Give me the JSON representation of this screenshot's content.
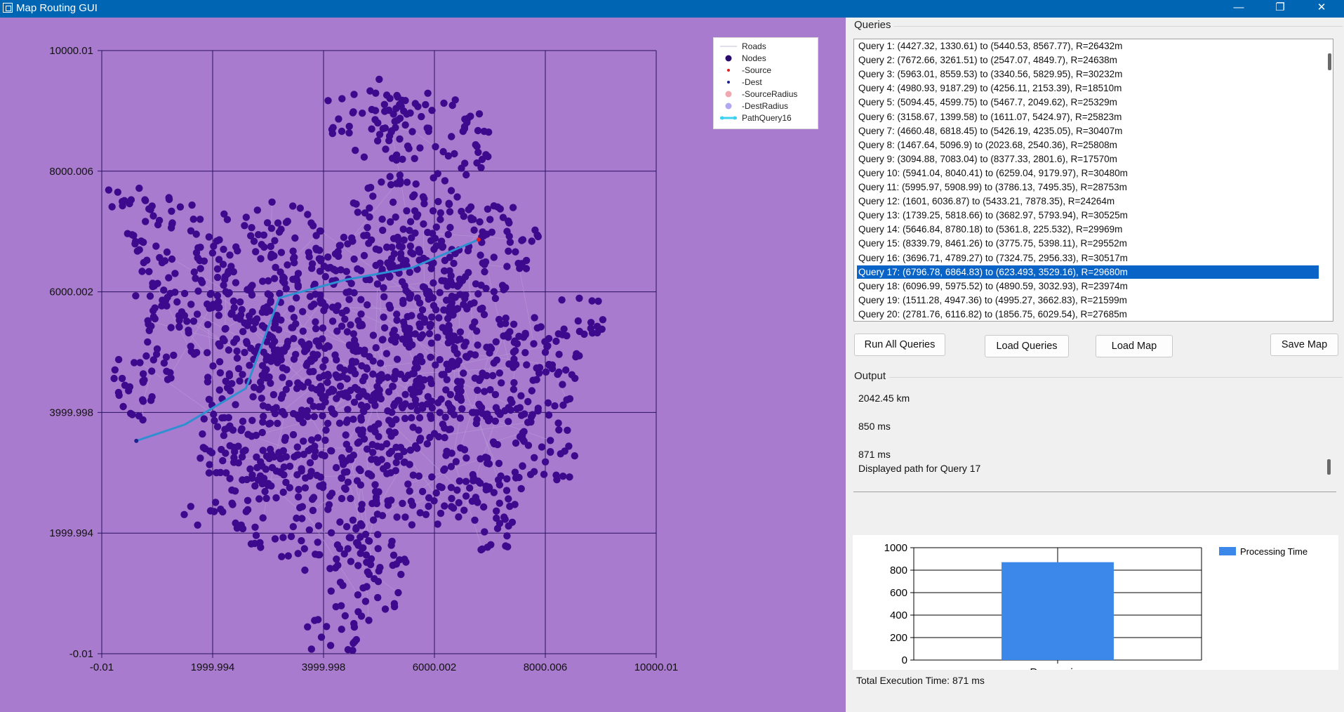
{
  "window": {
    "title": "Map Routing GUI",
    "icon": "app-window-icon",
    "controls": {
      "minimize": "—",
      "maximize": "❐",
      "close": "✕"
    }
  },
  "map": {
    "background_color": "#a97bce",
    "node_color": "#3d0a8e",
    "path_color": "#2f8fd0",
    "x_ticks": [
      "-0.01",
      "1999.994",
      "3999.998",
      "6000.002",
      "8000.006",
      "10000.01"
    ],
    "y_ticks": [
      "10000.01",
      "8000.006",
      "6000.002",
      "3999.998",
      "1999.994",
      "-0.01"
    ],
    "axis_range": [
      -0.01,
      10000.01
    ],
    "legend": [
      {
        "label": "Roads",
        "symbol": "line",
        "color": "#c0c0d8"
      },
      {
        "label": "Nodes",
        "symbol": "dot",
        "color": "#2b0a6e"
      },
      {
        "label": "-Source",
        "symbol": "dot-small",
        "color": "#e02020"
      },
      {
        "label": "-Dest",
        "symbol": "dot-small",
        "color": "#20208e"
      },
      {
        "label": "-SourceRadius",
        "symbol": "dot",
        "color": "#f0a8b0"
      },
      {
        "label": "-DestRadius",
        "symbol": "dot",
        "color": "#b0a8f0"
      },
      {
        "label": "PathQuery16",
        "symbol": "path",
        "color": "#3ed0f0"
      }
    ]
  },
  "queries": {
    "label": "Queries",
    "selected_index": 16,
    "items": [
      "Query 1: (4427.32, 1330.61) to (5440.53, 8567.77), R=26432m",
      "Query 2: (7672.66, 3261.51) to (2547.07, 4849.7), R=24638m",
      "Query 3: (5963.01, 8559.53) to (3340.56, 5829.95), R=30232m",
      "Query 4: (4980.93, 9187.29) to (4256.11, 2153.39), R=18510m",
      "Query 5: (5094.45, 4599.75) to (5467.7, 2049.62), R=25329m",
      "Query 6: (3158.67, 1399.58) to (1611.07, 5424.97), R=25823m",
      "Query 7: (4660.48, 6818.45) to (5426.19, 4235.05), R=30407m",
      "Query 8: (1467.64, 5096.9) to (2023.68, 2540.36), R=25808m",
      "Query 9: (3094.88, 7083.04) to (8377.33, 2801.6), R=17570m",
      "Query 10: (5941.04, 8040.41) to (6259.04, 9179.97), R=30480m",
      "Query 11: (5995.97, 5908.99) to (3786.13, 7495.35), R=28753m",
      "Query 12: (1601, 6036.87) to (5433.21, 7878.35), R=24264m",
      "Query 13: (1739.25, 5818.66) to (3682.97, 5793.94), R=30525m",
      "Query 14: (5646.84, 8780.18) to (5361.8, 225.532), R=29969m",
      "Query 15: (8339.79, 8461.26) to (3775.75, 5398.11), R=29552m",
      "Query 16: (3696.71, 4789.27) to (7324.75, 2956.33), R=30517m",
      "Query 17: (6796.78, 6864.83) to (623.493, 3529.16), R=29680m",
      "Query 18: (6096.99, 5975.52) to (4890.59, 3032.93), R=23974m",
      "Query 19: (1511.28, 4947.36) to (4995.27, 3662.83), R=21599m",
      "Query 20: (2781.76, 6116.82) to (1856.75, 6029.54), R=27685m"
    ]
  },
  "buttons": {
    "run_all": "Run All Queries",
    "load_queries": "Load Queries",
    "load_map": "Load Map",
    "save_map": "Save Map"
  },
  "output": {
    "label": "Output",
    "lines": [
      "2042.45 km",
      "",
      "850 ms",
      "",
      "871 ms",
      "Displayed path for Query 17"
    ]
  },
  "chart_data": {
    "type": "bar",
    "categories": [
      "Processing"
    ],
    "series": [
      {
        "name": "Processing Time",
        "values": [
          871
        ],
        "color": "#3b88ea"
      }
    ],
    "yticks": [
      "0",
      "200",
      "400",
      "600",
      "800",
      "1000"
    ],
    "ylim": [
      0,
      1000
    ],
    "legend_position": "top-right",
    "grid": true
  },
  "total_time": "Total Execution Time: 871 ms"
}
